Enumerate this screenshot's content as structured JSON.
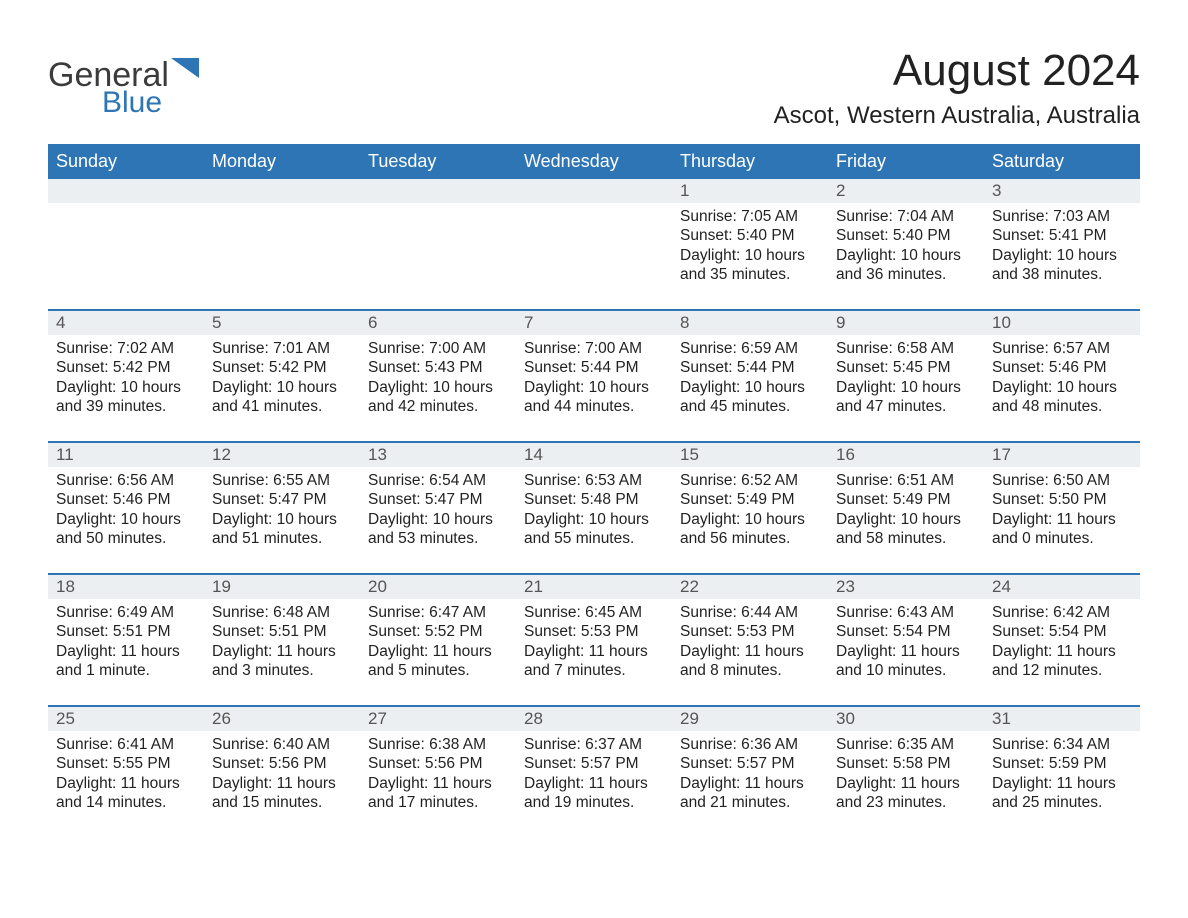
{
  "brand": {
    "name_top": "General",
    "name_bottom": "Blue",
    "text_color": "#3b3b3b",
    "accent_color": "#2e75b6"
  },
  "title": {
    "month": "August 2024",
    "location": "Ascot, Western Australia, Australia",
    "month_fontsize": 44,
    "location_fontsize": 24,
    "text_color": "#222222"
  },
  "calendar": {
    "header_bg": "#2e75b6",
    "header_text_color": "#ffffff",
    "daynum_bg": "#eceff1",
    "daynum_border_top": "#2e75b6",
    "body_text_color": "#222222",
    "background_color": "#ffffff",
    "days_of_week": [
      "Sunday",
      "Monday",
      "Tuesday",
      "Wednesday",
      "Thursday",
      "Friday",
      "Saturday"
    ],
    "body_fontsize": 15.5,
    "header_fontsize": 18,
    "weeks": [
      [
        {
          "num": "",
          "sunrise": "",
          "sunset": "",
          "daylight": "",
          "tail": ""
        },
        {
          "num": "",
          "sunrise": "",
          "sunset": "",
          "daylight": "",
          "tail": ""
        },
        {
          "num": "",
          "sunrise": "",
          "sunset": "",
          "daylight": "",
          "tail": ""
        },
        {
          "num": "",
          "sunrise": "",
          "sunset": "",
          "daylight": "",
          "tail": ""
        },
        {
          "num": "1",
          "sunrise": "Sunrise: 7:05 AM",
          "sunset": "Sunset: 5:40 PM",
          "daylight": "Daylight: 10 hours",
          "tail": "and 35 minutes."
        },
        {
          "num": "2",
          "sunrise": "Sunrise: 7:04 AM",
          "sunset": "Sunset: 5:40 PM",
          "daylight": "Daylight: 10 hours",
          "tail": "and 36 minutes."
        },
        {
          "num": "3",
          "sunrise": "Sunrise: 7:03 AM",
          "sunset": "Sunset: 5:41 PM",
          "daylight": "Daylight: 10 hours",
          "tail": "and 38 minutes."
        }
      ],
      [
        {
          "num": "4",
          "sunrise": "Sunrise: 7:02 AM",
          "sunset": "Sunset: 5:42 PM",
          "daylight": "Daylight: 10 hours",
          "tail": "and 39 minutes."
        },
        {
          "num": "5",
          "sunrise": "Sunrise: 7:01 AM",
          "sunset": "Sunset: 5:42 PM",
          "daylight": "Daylight: 10 hours",
          "tail": "and 41 minutes."
        },
        {
          "num": "6",
          "sunrise": "Sunrise: 7:00 AM",
          "sunset": "Sunset: 5:43 PM",
          "daylight": "Daylight: 10 hours",
          "tail": "and 42 minutes."
        },
        {
          "num": "7",
          "sunrise": "Sunrise: 7:00 AM",
          "sunset": "Sunset: 5:44 PM",
          "daylight": "Daylight: 10 hours",
          "tail": "and 44 minutes."
        },
        {
          "num": "8",
          "sunrise": "Sunrise: 6:59 AM",
          "sunset": "Sunset: 5:44 PM",
          "daylight": "Daylight: 10 hours",
          "tail": "and 45 minutes."
        },
        {
          "num": "9",
          "sunrise": "Sunrise: 6:58 AM",
          "sunset": "Sunset: 5:45 PM",
          "daylight": "Daylight: 10 hours",
          "tail": "and 47 minutes."
        },
        {
          "num": "10",
          "sunrise": "Sunrise: 6:57 AM",
          "sunset": "Sunset: 5:46 PM",
          "daylight": "Daylight: 10 hours",
          "tail": "and 48 minutes."
        }
      ],
      [
        {
          "num": "11",
          "sunrise": "Sunrise: 6:56 AM",
          "sunset": "Sunset: 5:46 PM",
          "daylight": "Daylight: 10 hours",
          "tail": "and 50 minutes."
        },
        {
          "num": "12",
          "sunrise": "Sunrise: 6:55 AM",
          "sunset": "Sunset: 5:47 PM",
          "daylight": "Daylight: 10 hours",
          "tail": "and 51 minutes."
        },
        {
          "num": "13",
          "sunrise": "Sunrise: 6:54 AM",
          "sunset": "Sunset: 5:47 PM",
          "daylight": "Daylight: 10 hours",
          "tail": "and 53 minutes."
        },
        {
          "num": "14",
          "sunrise": "Sunrise: 6:53 AM",
          "sunset": "Sunset: 5:48 PM",
          "daylight": "Daylight: 10 hours",
          "tail": "and 55 minutes."
        },
        {
          "num": "15",
          "sunrise": "Sunrise: 6:52 AM",
          "sunset": "Sunset: 5:49 PM",
          "daylight": "Daylight: 10 hours",
          "tail": "and 56 minutes."
        },
        {
          "num": "16",
          "sunrise": "Sunrise: 6:51 AM",
          "sunset": "Sunset: 5:49 PM",
          "daylight": "Daylight: 10 hours",
          "tail": "and 58 minutes."
        },
        {
          "num": "17",
          "sunrise": "Sunrise: 6:50 AM",
          "sunset": "Sunset: 5:50 PM",
          "daylight": "Daylight: 11 hours",
          "tail": "and 0 minutes."
        }
      ],
      [
        {
          "num": "18",
          "sunrise": "Sunrise: 6:49 AM",
          "sunset": "Sunset: 5:51 PM",
          "daylight": "Daylight: 11 hours",
          "tail": "and 1 minute."
        },
        {
          "num": "19",
          "sunrise": "Sunrise: 6:48 AM",
          "sunset": "Sunset: 5:51 PM",
          "daylight": "Daylight: 11 hours",
          "tail": "and 3 minutes."
        },
        {
          "num": "20",
          "sunrise": "Sunrise: 6:47 AM",
          "sunset": "Sunset: 5:52 PM",
          "daylight": "Daylight: 11 hours",
          "tail": "and 5 minutes."
        },
        {
          "num": "21",
          "sunrise": "Sunrise: 6:45 AM",
          "sunset": "Sunset: 5:53 PM",
          "daylight": "Daylight: 11 hours",
          "tail": "and 7 minutes."
        },
        {
          "num": "22",
          "sunrise": "Sunrise: 6:44 AM",
          "sunset": "Sunset: 5:53 PM",
          "daylight": "Daylight: 11 hours",
          "tail": "and 8 minutes."
        },
        {
          "num": "23",
          "sunrise": "Sunrise: 6:43 AM",
          "sunset": "Sunset: 5:54 PM",
          "daylight": "Daylight: 11 hours",
          "tail": "and 10 minutes."
        },
        {
          "num": "24",
          "sunrise": "Sunrise: 6:42 AM",
          "sunset": "Sunset: 5:54 PM",
          "daylight": "Daylight: 11 hours",
          "tail": "and 12 minutes."
        }
      ],
      [
        {
          "num": "25",
          "sunrise": "Sunrise: 6:41 AM",
          "sunset": "Sunset: 5:55 PM",
          "daylight": "Daylight: 11 hours",
          "tail": "and 14 minutes."
        },
        {
          "num": "26",
          "sunrise": "Sunrise: 6:40 AM",
          "sunset": "Sunset: 5:56 PM",
          "daylight": "Daylight: 11 hours",
          "tail": "and 15 minutes."
        },
        {
          "num": "27",
          "sunrise": "Sunrise: 6:38 AM",
          "sunset": "Sunset: 5:56 PM",
          "daylight": "Daylight: 11 hours",
          "tail": "and 17 minutes."
        },
        {
          "num": "28",
          "sunrise": "Sunrise: 6:37 AM",
          "sunset": "Sunset: 5:57 PM",
          "daylight": "Daylight: 11 hours",
          "tail": "and 19 minutes."
        },
        {
          "num": "29",
          "sunrise": "Sunrise: 6:36 AM",
          "sunset": "Sunset: 5:57 PM",
          "daylight": "Daylight: 11 hours",
          "tail": "and 21 minutes."
        },
        {
          "num": "30",
          "sunrise": "Sunrise: 6:35 AM",
          "sunset": "Sunset: 5:58 PM",
          "daylight": "Daylight: 11 hours",
          "tail": "and 23 minutes."
        },
        {
          "num": "31",
          "sunrise": "Sunrise: 6:34 AM",
          "sunset": "Sunset: 5:59 PM",
          "daylight": "Daylight: 11 hours",
          "tail": "and 25 minutes."
        }
      ]
    ]
  }
}
